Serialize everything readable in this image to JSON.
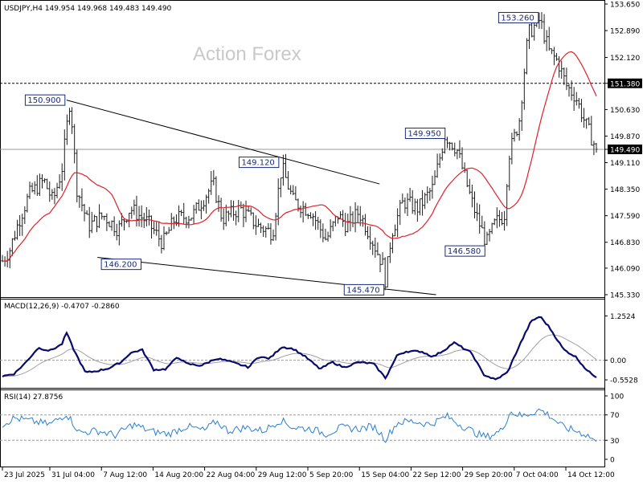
{
  "header": {
    "symbol_line": "USDJPY,H4  149.954 149.968 149.483 149.490"
  },
  "watermark": "Action Forex",
  "chart_data": [
    {
      "type": "candlestick",
      "title": "USDJPY,H4",
      "ohlc_label": "149.954 149.968 149.483 149.490",
      "ylim": [
        145.33,
        153.65
      ],
      "y_ticks": [
        "153.650",
        "152.890",
        "152.120",
        "151.380",
        "150.630",
        "149.870",
        "149.490",
        "149.110",
        "148.350",
        "147.590",
        "146.830",
        "146.090",
        "145.330"
      ],
      "x_ticks": [
        "23 Jul 2025",
        "31 Jul 04:00",
        "7 Aug 12:00",
        "14 Aug 20:00",
        "22 Aug 04:00",
        "29 Aug 12:00",
        "5 Sep 20:00",
        "15 Sep 04:00",
        "22 Sep 12:00",
        "29 Sep 20:00",
        "7 Oct 04:00",
        "14 Oct 12:00"
      ],
      "grid": false,
      "last_price": "149.490",
      "level_line": "151.380",
      "close_anchors": [
        {
          "t": 0,
          "v": 146.3
        },
        {
          "t": 0.012,
          "v": 146.6
        },
        {
          "t": 0.027,
          "v": 147.4
        },
        {
          "t": 0.045,
          "v": 148.2
        },
        {
          "t": 0.07,
          "v": 148.6
        },
        {
          "t": 0.085,
          "v": 148.0
        },
        {
          "t": 0.1,
          "v": 148.9
        },
        {
          "t": 0.113,
          "v": 150.8
        },
        {
          "t": 0.117,
          "v": 150.3
        },
        {
          "t": 0.125,
          "v": 148.4
        },
        {
          "t": 0.145,
          "v": 147.3
        },
        {
          "t": 0.17,
          "v": 147.6
        },
        {
          "t": 0.195,
          "v": 147.2
        },
        {
          "t": 0.215,
          "v": 147.8
        },
        {
          "t": 0.245,
          "v": 147.4
        },
        {
          "t": 0.27,
          "v": 146.8
        },
        {
          "t": 0.29,
          "v": 147.5
        },
        {
          "t": 0.32,
          "v": 147.6
        },
        {
          "t": 0.355,
          "v": 148.5
        },
        {
          "t": 0.37,
          "v": 147.5
        },
        {
          "t": 0.4,
          "v": 147.8
        },
        {
          "t": 0.43,
          "v": 147.3
        },
        {
          "t": 0.455,
          "v": 147.1
        },
        {
          "t": 0.47,
          "v": 149.0
        },
        {
          "t": 0.49,
          "v": 148.0
        },
        {
          "t": 0.52,
          "v": 147.7
        },
        {
          "t": 0.545,
          "v": 146.9
        },
        {
          "t": 0.565,
          "v": 147.6
        },
        {
          "t": 0.58,
          "v": 147.3
        },
        {
          "t": 0.6,
          "v": 147.7
        },
        {
          "t": 0.62,
          "v": 147.0
        },
        {
          "t": 0.64,
          "v": 146.2
        },
        {
          "t": 0.645,
          "v": 145.7
        },
        {
          "t": 0.655,
          "v": 147.1
        },
        {
          "t": 0.675,
          "v": 148.0
        },
        {
          "t": 0.7,
          "v": 147.8
        },
        {
          "t": 0.725,
          "v": 148.4
        },
        {
          "t": 0.745,
          "v": 149.9
        },
        {
          "t": 0.765,
          "v": 149.5
        },
        {
          "t": 0.79,
          "v": 148.0
        },
        {
          "t": 0.8,
          "v": 147.5
        },
        {
          "t": 0.815,
          "v": 146.8
        },
        {
          "t": 0.83,
          "v": 147.4
        },
        {
          "t": 0.845,
          "v": 147.6
        },
        {
          "t": 0.852,
          "v": 149.3
        },
        {
          "t": 0.87,
          "v": 150.3
        },
        {
          "t": 0.885,
          "v": 152.8
        },
        {
          "t": 0.905,
          "v": 153.2
        },
        {
          "t": 0.92,
          "v": 152.3
        },
        {
          "t": 0.935,
          "v": 152.0
        },
        {
          "t": 0.95,
          "v": 151.3
        },
        {
          "t": 0.965,
          "v": 151.0
        },
        {
          "t": 0.98,
          "v": 150.3
        },
        {
          "t": 1.0,
          "v": 149.49
        }
      ],
      "moving_average": "red line",
      "annotations": [
        {
          "label": "153.260",
          "t": 0.905,
          "v": 153.26,
          "side": "left"
        },
        {
          "label": "150.900",
          "t": 0.108,
          "v": 150.9,
          "side": "left"
        },
        {
          "label": "149.950",
          "t": 0.748,
          "v": 149.95,
          "side": "left"
        },
        {
          "label": "149.120",
          "t": 0.468,
          "v": 149.12,
          "side": "left"
        },
        {
          "label": "146.580",
          "t": 0.815,
          "v": 146.58,
          "side": "left"
        },
        {
          "label": "146.200",
          "t": 0.2,
          "v": 146.2,
          "side": "right"
        },
        {
          "label": "145.470",
          "t": 0.645,
          "v": 145.47,
          "side": "left"
        }
      ],
      "trendlines": [
        {
          "from": {
            "t": 0.108,
            "v": 150.9
          },
          "to": {
            "t": 0.635,
            "v": 148.5
          }
        },
        {
          "from": {
            "t": 0.16,
            "v": 146.4
          },
          "to": {
            "t": 0.73,
            "v": 145.33
          }
        }
      ],
      "colors": {
        "candle": "#1e1e1e",
        "ma": "#e0202a",
        "level": "#000000",
        "trend": "#000000"
      }
    },
    {
      "type": "line",
      "title": "MACD(12,26,9) -0.4707 -0.2860",
      "ylim": [
        -0.62,
        1.33
      ],
      "y_ticks": [
        "1.2524",
        "0.00",
        "-0.5528"
      ],
      "series": [
        {
          "name": "MACD",
          "color": "#0a0a6e",
          "points": [
            {
              "t": 0,
              "v": -0.45
            },
            {
              "t": 0.02,
              "v": -0.38
            },
            {
              "t": 0.04,
              "v": -0.05
            },
            {
              "t": 0.06,
              "v": 0.35
            },
            {
              "t": 0.08,
              "v": 0.27
            },
            {
              "t": 0.1,
              "v": 0.45
            },
            {
              "t": 0.108,
              "v": 0.78
            },
            {
              "t": 0.12,
              "v": 0.3
            },
            {
              "t": 0.14,
              "v": -0.35
            },
            {
              "t": 0.16,
              "v": -0.3
            },
            {
              "t": 0.18,
              "v": -0.22
            },
            {
              "t": 0.2,
              "v": -0.05
            },
            {
              "t": 0.215,
              "v": 0.2
            },
            {
              "t": 0.235,
              "v": 0.3
            },
            {
              "t": 0.255,
              "v": -0.27
            },
            {
              "t": 0.275,
              "v": -0.25
            },
            {
              "t": 0.295,
              "v": 0.1
            },
            {
              "t": 0.31,
              "v": -0.1
            },
            {
              "t": 0.335,
              "v": -0.15
            },
            {
              "t": 0.36,
              "v": 0.05
            },
            {
              "t": 0.375,
              "v": 0.0
            },
            {
              "t": 0.395,
              "v": -0.1
            },
            {
              "t": 0.415,
              "v": -0.2
            },
            {
              "t": 0.43,
              "v": 0.1
            },
            {
              "t": 0.45,
              "v": 0.05
            },
            {
              "t": 0.47,
              "v": 0.38
            },
            {
              "t": 0.49,
              "v": 0.32
            },
            {
              "t": 0.51,
              "v": 0.1
            },
            {
              "t": 0.535,
              "v": -0.25
            },
            {
              "t": 0.555,
              "v": -0.05
            },
            {
              "t": 0.575,
              "v": -0.2
            },
            {
              "t": 0.6,
              "v": -0.05
            },
            {
              "t": 0.625,
              "v": -0.1
            },
            {
              "t": 0.645,
              "v": -0.5
            },
            {
              "t": 0.665,
              "v": 0.15
            },
            {
              "t": 0.68,
              "v": 0.25
            },
            {
              "t": 0.705,
              "v": 0.25
            },
            {
              "t": 0.725,
              "v": 0.1
            },
            {
              "t": 0.745,
              "v": 0.3
            },
            {
              "t": 0.76,
              "v": 0.5
            },
            {
              "t": 0.79,
              "v": 0.2
            },
            {
              "t": 0.81,
              "v": -0.4
            },
            {
              "t": 0.83,
              "v": -0.55
            },
            {
              "t": 0.85,
              "v": -0.35
            },
            {
              "t": 0.87,
              "v": 0.4
            },
            {
              "t": 0.89,
              "v": 1.1
            },
            {
              "t": 0.905,
              "v": 1.24
            },
            {
              "t": 0.92,
              "v": 0.95
            },
            {
              "t": 0.945,
              "v": 0.3
            },
            {
              "t": 0.965,
              "v": 0.1
            },
            {
              "t": 0.985,
              "v": -0.3
            },
            {
              "t": 1.0,
              "v": -0.47
            }
          ]
        },
        {
          "name": "Signal",
          "color": "#a0a0a0",
          "smoothing": "lagged signal of MACD"
        }
      ]
    },
    {
      "type": "line",
      "title": "RSI(14) 27.8756",
      "ylim": [
        0,
        100
      ],
      "y_ticks": [
        "100",
        "70",
        "30",
        "0"
      ],
      "guide_levels": [
        70,
        30
      ],
      "series": [
        {
          "name": "RSI",
          "color": "#2b7fd0",
          "points": [
            {
              "t": 0,
              "v": 55
            },
            {
              "t": 0.02,
              "v": 65
            },
            {
              "t": 0.05,
              "v": 60
            },
            {
              "t": 0.08,
              "v": 55
            },
            {
              "t": 0.108,
              "v": 72
            },
            {
              "t": 0.13,
              "v": 42
            },
            {
              "t": 0.16,
              "v": 45
            },
            {
              "t": 0.19,
              "v": 38
            },
            {
              "t": 0.22,
              "v": 55
            },
            {
              "t": 0.25,
              "v": 44
            },
            {
              "t": 0.28,
              "v": 40
            },
            {
              "t": 0.31,
              "v": 52
            },
            {
              "t": 0.34,
              "v": 45
            },
            {
              "t": 0.36,
              "v": 60
            },
            {
              "t": 0.38,
              "v": 45
            },
            {
              "t": 0.41,
              "v": 50
            },
            {
              "t": 0.44,
              "v": 45
            },
            {
              "t": 0.468,
              "v": 62
            },
            {
              "t": 0.49,
              "v": 50
            },
            {
              "t": 0.52,
              "v": 48
            },
            {
              "t": 0.545,
              "v": 40
            },
            {
              "t": 0.57,
              "v": 50
            },
            {
              "t": 0.6,
              "v": 48
            },
            {
              "t": 0.625,
              "v": 52
            },
            {
              "t": 0.645,
              "v": 32
            },
            {
              "t": 0.665,
              "v": 58
            },
            {
              "t": 0.69,
              "v": 60
            },
            {
              "t": 0.72,
              "v": 55
            },
            {
              "t": 0.748,
              "v": 68
            },
            {
              "t": 0.77,
              "v": 55
            },
            {
              "t": 0.8,
              "v": 40
            },
            {
              "t": 0.815,
              "v": 35
            },
            {
              "t": 0.84,
              "v": 45
            },
            {
              "t": 0.855,
              "v": 75
            },
            {
              "t": 0.875,
              "v": 68
            },
            {
              "t": 0.905,
              "v": 78
            },
            {
              "t": 0.92,
              "v": 70
            },
            {
              "t": 0.945,
              "v": 50
            },
            {
              "t": 0.965,
              "v": 45
            },
            {
              "t": 0.985,
              "v": 38
            },
            {
              "t": 1.0,
              "v": 28
            }
          ]
        }
      ]
    }
  ]
}
